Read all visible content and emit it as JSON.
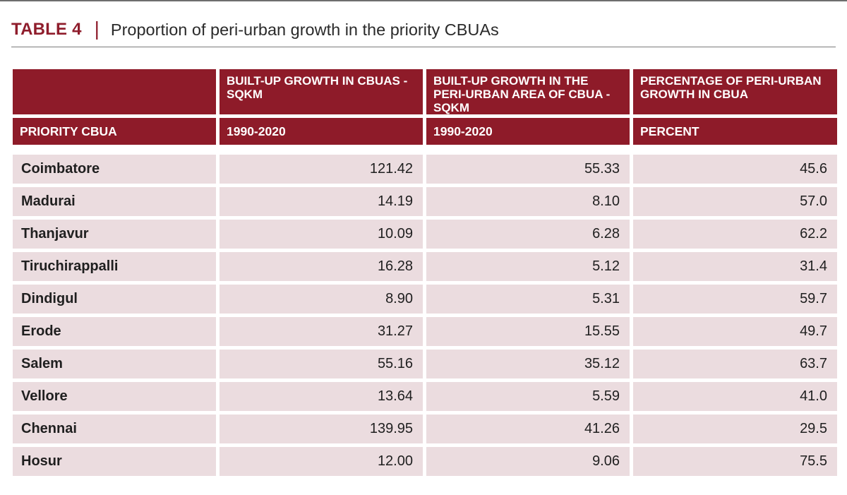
{
  "title": {
    "label": "TABLE 4",
    "separator": "|",
    "text": "Proportion of peri-urban growth in the priority CBUAs"
  },
  "columns": {
    "headers": [
      "",
      "BUILT-UP GROWTH IN CBUAS - SQKM",
      "BUILT-UP GROWTH IN THE PERI-URBAN AREA OF CBUA - SQKM",
      "PERCENTAGE OF PERI-URBAN GROWTH IN CBUA"
    ],
    "subheaders": [
      "PRIORITY CBUA",
      "1990-2020",
      "1990-2020",
      "PERCENT"
    ]
  },
  "rows": [
    {
      "cbua": "Coimbatore",
      "built_up": "121.42",
      "peri_urban": "55.33",
      "percent": "45.6"
    },
    {
      "cbua": "Madurai",
      "built_up": "14.19",
      "peri_urban": "8.10",
      "percent": "57.0"
    },
    {
      "cbua": "Thanjavur",
      "built_up": "10.09",
      "peri_urban": "6.28",
      "percent": "62.2"
    },
    {
      "cbua": "Tiruchirappalli",
      "built_up": "16.28",
      "peri_urban": "5.12",
      "percent": "31.4"
    },
    {
      "cbua": "Dindigul",
      "built_up": "8.90",
      "peri_urban": "5.31",
      "percent": "59.7"
    },
    {
      "cbua": "Erode",
      "built_up": "31.27",
      "peri_urban": "15.55",
      "percent": "49.7"
    },
    {
      "cbua": "Salem",
      "built_up": "55.16",
      "peri_urban": "35.12",
      "percent": "63.7"
    },
    {
      "cbua": "Vellore",
      "built_up": "13.64",
      "peri_urban": "5.59",
      "percent": "41.0"
    },
    {
      "cbua": "Chennai",
      "built_up": "139.95",
      "peri_urban": "41.26",
      "percent": "29.5"
    },
    {
      "cbua": "Hosur",
      "built_up": "12.00",
      "peri_urban": "9.06",
      "percent": "75.5"
    }
  ],
  "colors": {
    "accent": "#8e1b29",
    "row_fill": "#ebdcdf"
  }
}
